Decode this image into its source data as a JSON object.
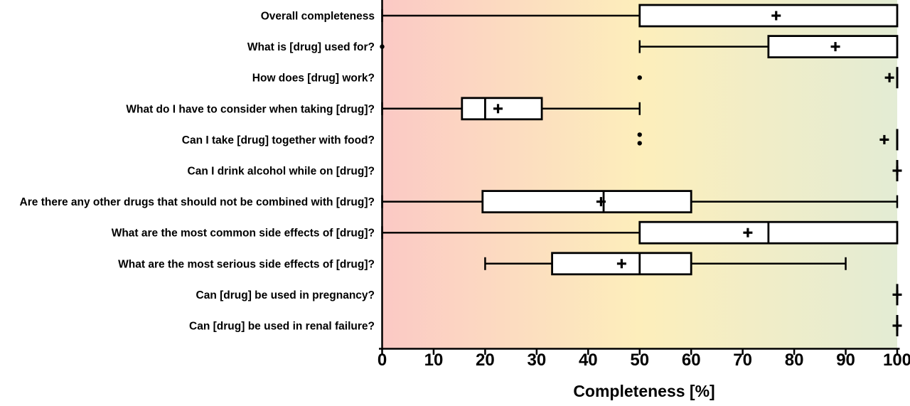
{
  "chart_data": {
    "type": "boxplot",
    "orientation": "horizontal",
    "title": "",
    "xlabel": "Completeness [%]",
    "ylabel": "",
    "xlim": [
      0,
      100
    ],
    "xticks": [
      0,
      10,
      20,
      30,
      40,
      50,
      60,
      70,
      80,
      90,
      100
    ],
    "grid": false,
    "legend": "none",
    "mean_marker": "plus",
    "outlier_marker": "dot",
    "background_gradient": [
      "#fbc9c5",
      "#fdeebb",
      "#e3ecd4"
    ],
    "stroke_color": "#000000",
    "box_fill": "#ffffff",
    "rows": [
      {
        "label": "Overall completeness",
        "whisker_low": 0,
        "q1": 50,
        "median": 100,
        "q3": 100,
        "whisker_high": 100,
        "mean": 76.5,
        "outliers": []
      },
      {
        "label": "What is [drug] used for?",
        "whisker_low": 50,
        "q1": 75,
        "median": 100,
        "q3": 100,
        "whisker_high": 100,
        "mean": 88,
        "outliers": [
          0
        ]
      },
      {
        "label": "How does [drug] work?",
        "whisker_low": 100,
        "q1": 100,
        "median": 100,
        "q3": 100,
        "whisker_high": 100,
        "mean": 98.5,
        "outliers": [
          50
        ]
      },
      {
        "label": "What do I have to consider when taking [drug]?",
        "whisker_low": 0,
        "q1": 15.5,
        "median": 20,
        "q3": 31,
        "whisker_high": 50,
        "mean": 22.5,
        "outliers": []
      },
      {
        "label": "Can I take [drug] together with food?",
        "whisker_low": 100,
        "q1": 100,
        "median": 100,
        "q3": 100,
        "whisker_high": 100,
        "mean": 97.5,
        "outliers": [
          50,
          50
        ]
      },
      {
        "label": "Can I drink alcohol while on [drug]?",
        "whisker_low": 100,
        "q1": 100,
        "median": 100,
        "q3": 100,
        "whisker_high": 100,
        "mean": 100,
        "outliers": []
      },
      {
        "label": "Are there any other drugs that should not be combined with [drug]?",
        "whisker_low": 0,
        "q1": 19.5,
        "median": 43,
        "q3": 60,
        "whisker_high": 100,
        "mean": 42.5,
        "outliers": []
      },
      {
        "label": "What are the most common side effects of [drug]?",
        "whisker_low": 0,
        "q1": 50,
        "median": 75,
        "q3": 100,
        "whisker_high": 100,
        "mean": 71,
        "outliers": []
      },
      {
        "label": "What are the most serious side effects of [drug]?",
        "whisker_low": 20,
        "q1": 33,
        "median": 50,
        "q3": 60,
        "whisker_high": 90,
        "mean": 46.5,
        "outliers": []
      },
      {
        "label": "Can [drug] be used in pregnancy?",
        "whisker_low": 100,
        "q1": 100,
        "median": 100,
        "q3": 100,
        "whisker_high": 100,
        "mean": 100,
        "outliers": []
      },
      {
        "label": "Can [drug] be used in renal failure?",
        "whisker_low": 100,
        "q1": 100,
        "median": 100,
        "q3": 100,
        "whisker_high": 100,
        "mean": 100,
        "outliers": []
      }
    ]
  }
}
